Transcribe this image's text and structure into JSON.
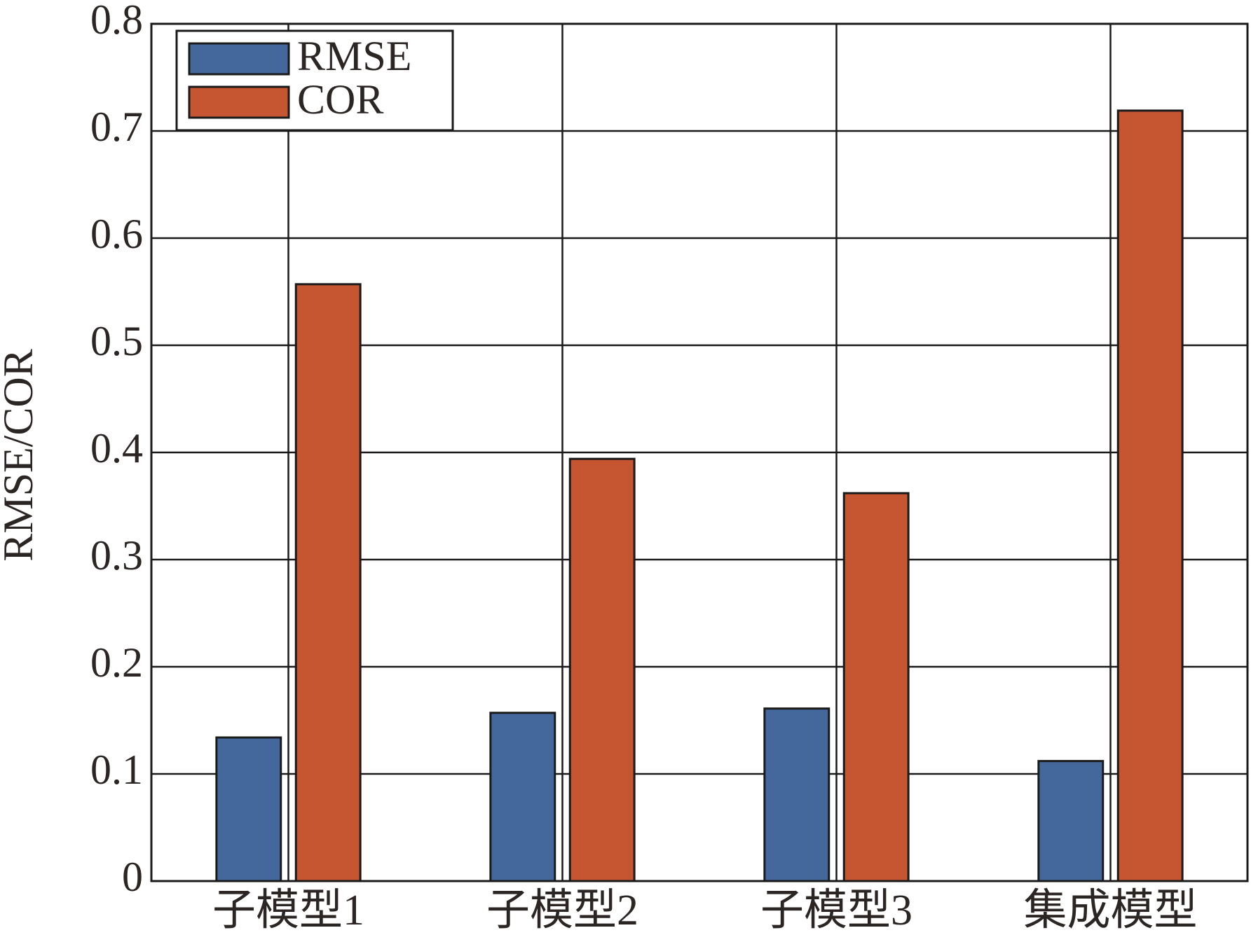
{
  "chart_data": {
    "type": "bar",
    "y_label": "RMSE/COR",
    "categories": [
      "子模型1",
      "子模型2",
      "子模型3",
      "集成模型"
    ],
    "series": [
      {
        "name": "RMSE",
        "color": "#44689c",
        "values": [
          0.134,
          0.157,
          0.161,
          0.112
        ]
      },
      {
        "name": "COR",
        "color": "#c65532",
        "values": [
          0.557,
          0.394,
          0.362,
          0.719
        ]
      }
    ],
    "ylim": [
      0,
      0.8
    ],
    "yticks": [
      0,
      0.1,
      0.2,
      0.3,
      0.4,
      0.5,
      0.6,
      0.7,
      0.8
    ],
    "grid": true,
    "legend": "upper-left"
  }
}
